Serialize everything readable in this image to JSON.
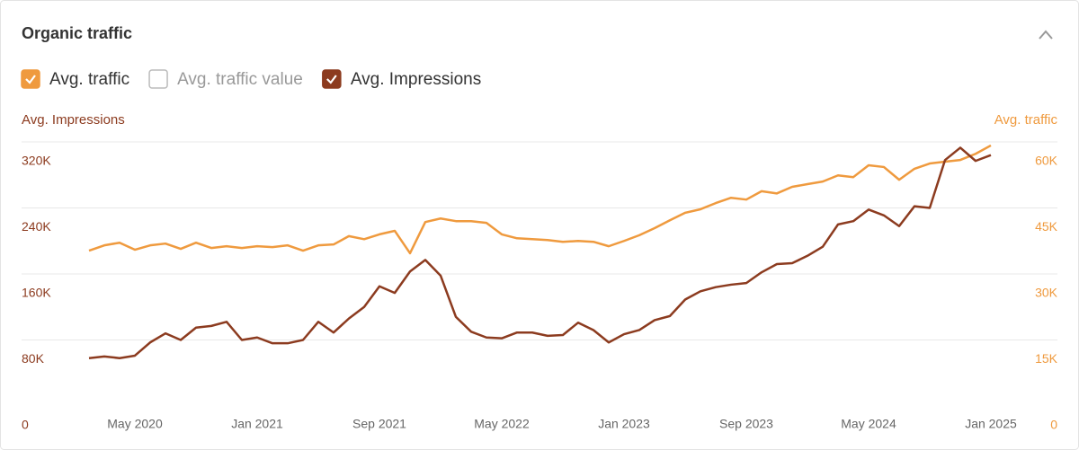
{
  "title": "Organic traffic",
  "chart_data": {
    "type": "line",
    "y_label": "Avg. Impressions",
    "y2_label": "Avg. traffic",
    "categories": [
      null,
      null,
      null,
      "May 2020",
      null,
      null,
      null,
      null,
      null,
      null,
      null,
      "Jan 2021",
      null,
      null,
      null,
      null,
      null,
      null,
      null,
      "Sep 2021",
      null,
      null,
      null,
      null,
      null,
      null,
      null,
      "May 2022",
      null,
      null,
      null,
      null,
      null,
      null,
      null,
      "Jan 2023",
      null,
      null,
      null,
      null,
      null,
      null,
      null,
      "Sep 2023",
      null,
      null,
      null,
      null,
      null,
      null,
      null,
      "May 2024",
      null,
      null,
      null,
      null,
      null,
      null,
      null,
      "Jan 2025"
    ],
    "series": [
      {
        "name": "Avg. traffic",
        "checked": true,
        "color": "#ef9a3e",
        "axis": "y2",
        "values": [
          35300,
          36500,
          37100,
          35500,
          36500,
          36900,
          35700,
          37100,
          35900,
          36300,
          35900,
          36300,
          36100,
          36500,
          35300,
          36500,
          36700,
          38600,
          37900,
          39000,
          39800,
          34700,
          41800,
          42600,
          42000,
          42000,
          41600,
          39000,
          38100,
          37900,
          37700,
          37300,
          37500,
          37300,
          36300,
          37500,
          38800,
          40400,
          42200,
          43900,
          44700,
          46100,
          47300,
          46900,
          48800,
          48300,
          49800,
          50400,
          51000,
          52400,
          52000,
          54700,
          54300,
          51400,
          53900,
          55100,
          55500,
          55900,
          57300,
          59200
        ]
      },
      {
        "name": "Avg. traffic value",
        "checked": false,
        "color": "#9a9a9a"
      },
      {
        "name": "Avg. Impressions",
        "checked": true,
        "color": "#8c3b1f",
        "axis": "y",
        "values": [
          58000,
          60000,
          58000,
          61000,
          77000,
          88000,
          80000,
          95000,
          97000,
          102000,
          80000,
          83000,
          76000,
          76000,
          80000,
          102000,
          89000,
          106000,
          120000,
          145000,
          137000,
          163000,
          177000,
          158000,
          108000,
          90000,
          83000,
          82000,
          89000,
          89000,
          85000,
          86000,
          101000,
          92000,
          77000,
          87000,
          92000,
          104000,
          109000,
          129000,
          139000,
          144000,
          147000,
          149000,
          162000,
          172000,
          173000,
          182000,
          193000,
          220000,
          224000,
          238000,
          231000,
          218000,
          242000,
          240000,
          298000,
          313000,
          297000,
          304000
        ]
      }
    ],
    "ylim": [
      0,
      320000
    ],
    "yticks": [
      0,
      {
        "value": 80000,
        "label": "80K"
      },
      {
        "value": 160000,
        "label": "160K"
      },
      {
        "value": 240000,
        "label": "240K"
      },
      {
        "value": 320000,
        "label": "320K"
      }
    ],
    "y2lim": [
      0,
      60000
    ],
    "y2ticks": [
      0,
      {
        "value": 15000,
        "label": "15K"
      },
      {
        "value": 30000,
        "label": "30K"
      },
      {
        "value": 45000,
        "label": "45K"
      },
      {
        "value": 60000,
        "label": "60K"
      }
    ],
    "grid": true
  }
}
